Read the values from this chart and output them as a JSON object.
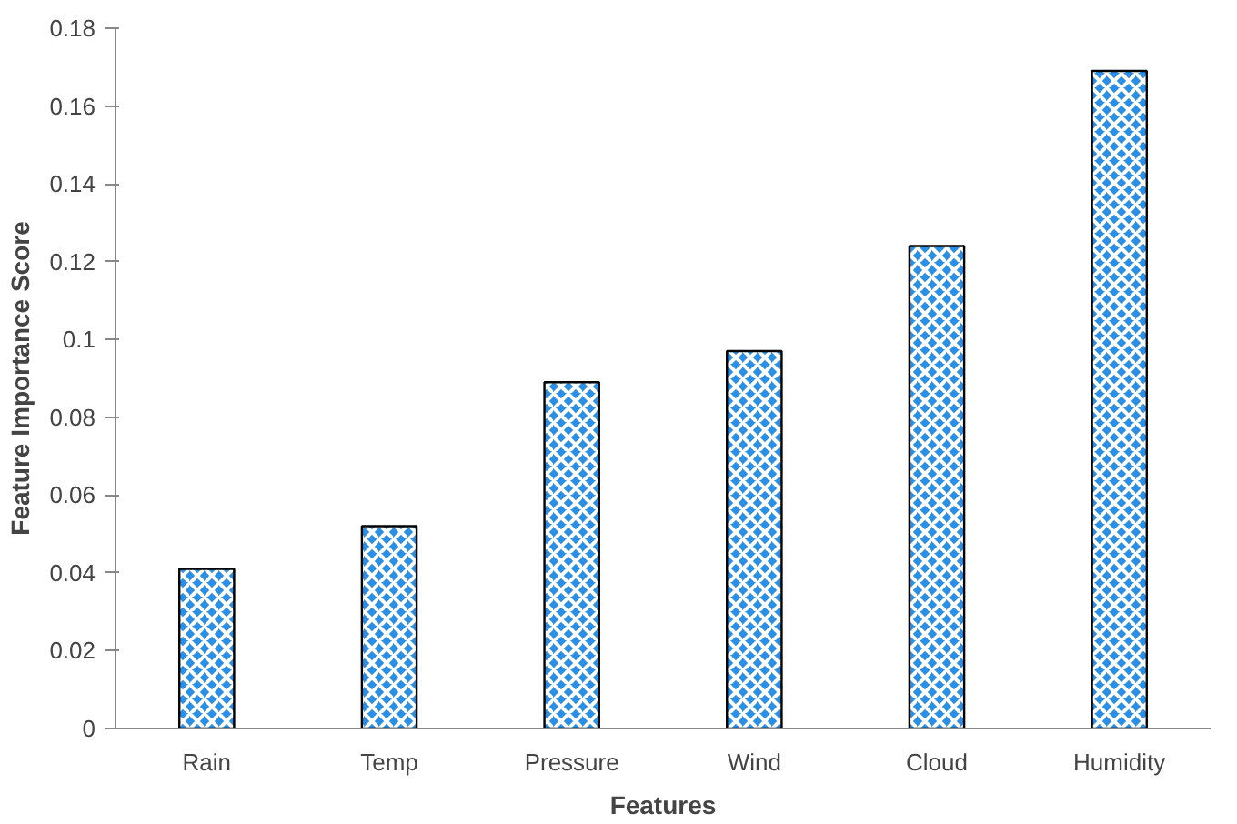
{
  "chart_data": {
    "type": "bar",
    "xlabel": "Features",
    "ylabel": "Feature Importance Score",
    "categories": [
      "Rain",
      "Temp",
      "Pressure",
      "Wind",
      "Cloud",
      "Humidity"
    ],
    "values": [
      0.041,
      0.052,
      0.089,
      0.097,
      0.124,
      0.169
    ],
    "color": "#2b8fe6",
    "ylim": [
      0,
      0.18
    ],
    "yticks": [
      0,
      0.02,
      0.04,
      0.06,
      0.08,
      0.1,
      0.12,
      0.14,
      0.16,
      0.18
    ],
    "grid": false
  }
}
